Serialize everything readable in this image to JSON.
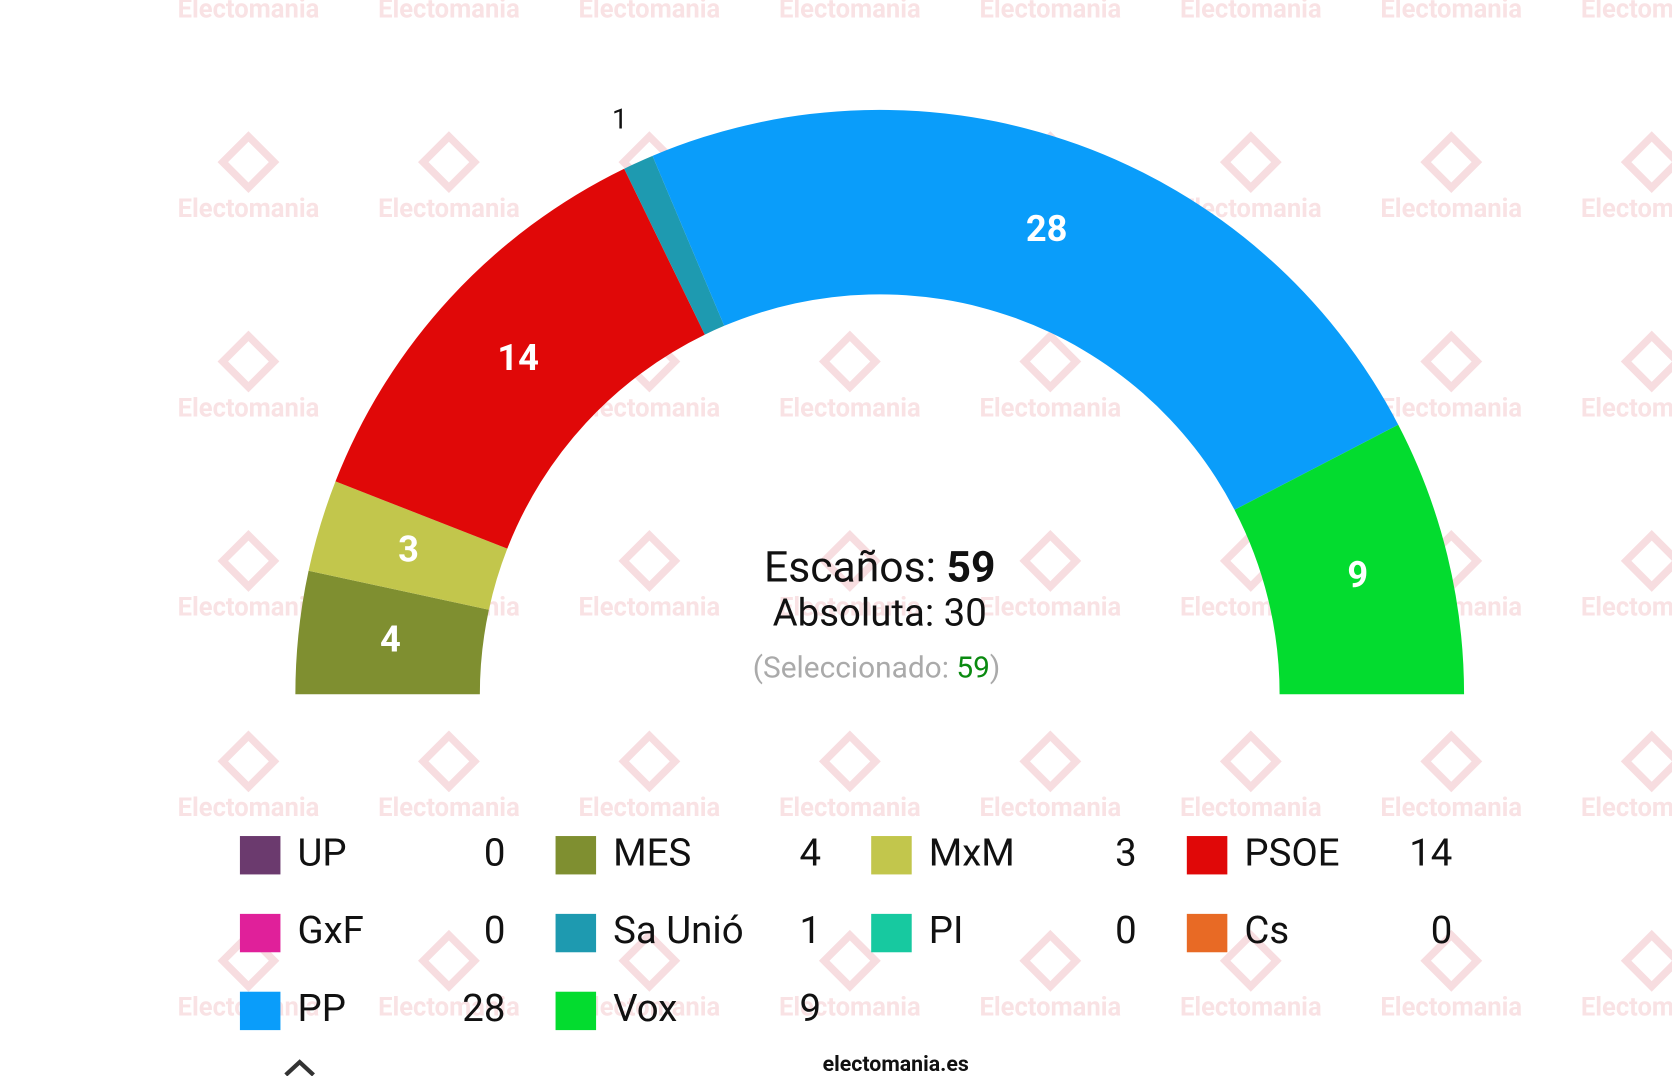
{
  "watermark": "Electomania",
  "chart_data": {
    "type": "parliament",
    "categories": [
      "UP",
      "MES",
      "MxM",
      "PSOE",
      "GxF",
      "Sa Unió",
      "PI",
      "Cs",
      "PP",
      "Vox"
    ],
    "values": [
      0,
      4,
      3,
      14,
      0,
      1,
      0,
      0,
      28,
      9
    ],
    "colors": [
      "#6b3a6e",
      "#7f8f30",
      "#c2c64c",
      "#e00808",
      "#e0209a",
      "#1e9ab0",
      "#17c9a0",
      "#e86a25",
      "#0a9dfa",
      "#03dc2f"
    ],
    "seats_label": "Escaños:",
    "seats_total": 59,
    "majority_label": "Absoluta:",
    "majority": 30,
    "selected_label": "(Seleccionado:",
    "selected": 59,
    "selected_close": ")",
    "footer": "electomania.es"
  }
}
